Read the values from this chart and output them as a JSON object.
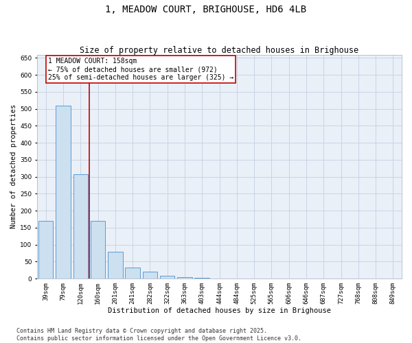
{
  "title": "1, MEADOW COURT, BRIGHOUSE, HD6 4LB",
  "subtitle": "Size of property relative to detached houses in Brighouse",
  "xlabel": "Distribution of detached houses by size in Brighouse",
  "ylabel": "Number of detached properties",
  "categories": [
    "39sqm",
    "79sqm",
    "120sqm",
    "160sqm",
    "201sqm",
    "241sqm",
    "282sqm",
    "322sqm",
    "363sqm",
    "403sqm",
    "444sqm",
    "484sqm",
    "525sqm",
    "565sqm",
    "606sqm",
    "646sqm",
    "687sqm",
    "727sqm",
    "768sqm",
    "808sqm",
    "849sqm"
  ],
  "values": [
    170,
    510,
    308,
    170,
    80,
    33,
    20,
    8,
    4,
    2,
    1,
    1,
    0,
    0,
    0,
    0,
    0,
    0,
    0,
    0,
    0
  ],
  "bar_color": "#cce0f0",
  "bar_edge_color": "#5b9bd5",
  "vline_color": "#c00000",
  "annotation_text": "1 MEADOW COURT: 158sqm\n← 75% of detached houses are smaller (972)\n25% of semi-detached houses are larger (325) →",
  "annotation_box_color": "#c00000",
  "ylim": [
    0,
    660
  ],
  "yticks": [
    0,
    50,
    100,
    150,
    200,
    250,
    300,
    350,
    400,
    450,
    500,
    550,
    600,
    650
  ],
  "grid_color": "#c8d4e3",
  "bg_color": "#eaf0f8",
  "footer_line1": "Contains HM Land Registry data © Crown copyright and database right 2025.",
  "footer_line2": "Contains public sector information licensed under the Open Government Licence v3.0.",
  "title_fontsize": 10,
  "subtitle_fontsize": 8.5,
  "axis_label_fontsize": 7.5,
  "tick_fontsize": 6.5,
  "annotation_fontsize": 7,
  "footer_fontsize": 6
}
